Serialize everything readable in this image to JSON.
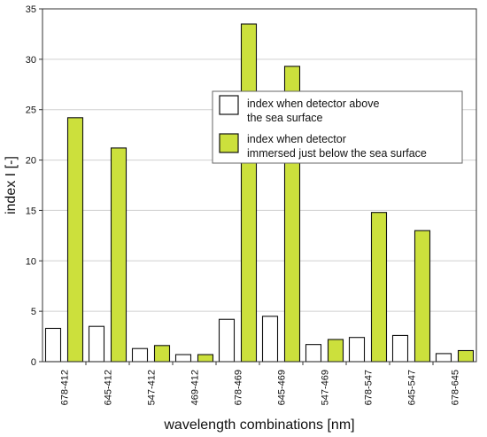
{
  "chart_data": {
    "type": "bar",
    "categories": [
      "678-412",
      "645-412",
      "547-412",
      "469-412",
      "678-469",
      "645-469",
      "547-469",
      "678-547",
      "645-547",
      "678-645"
    ],
    "series": [
      {
        "name": "index when detector above the sea surface",
        "legend_lines": [
          "index when detector above",
          "the sea surface"
        ],
        "color": "#ffffff",
        "values": [
          3.3,
          3.5,
          1.3,
          0.7,
          4.2,
          4.5,
          1.7,
          2.4,
          2.6,
          0.8
        ]
      },
      {
        "name": "index when detector immersed just below the sea surface",
        "legend_lines": [
          "index when detector",
          "immersed just below the sea surface"
        ],
        "color": "#cce03c",
        "values": [
          24.2,
          21.2,
          1.6,
          0.7,
          33.5,
          29.3,
          2.2,
          14.8,
          13.0,
          1.1
        ]
      }
    ],
    "xlabel": "wavelength combinations  [nm]",
    "ylabel": "index I   [-]",
    "ylim": [
      0,
      35
    ],
    "yticks": [
      0,
      5,
      10,
      15,
      20,
      25,
      30,
      35
    ],
    "grid": true,
    "legend_position": "upper-right"
  }
}
